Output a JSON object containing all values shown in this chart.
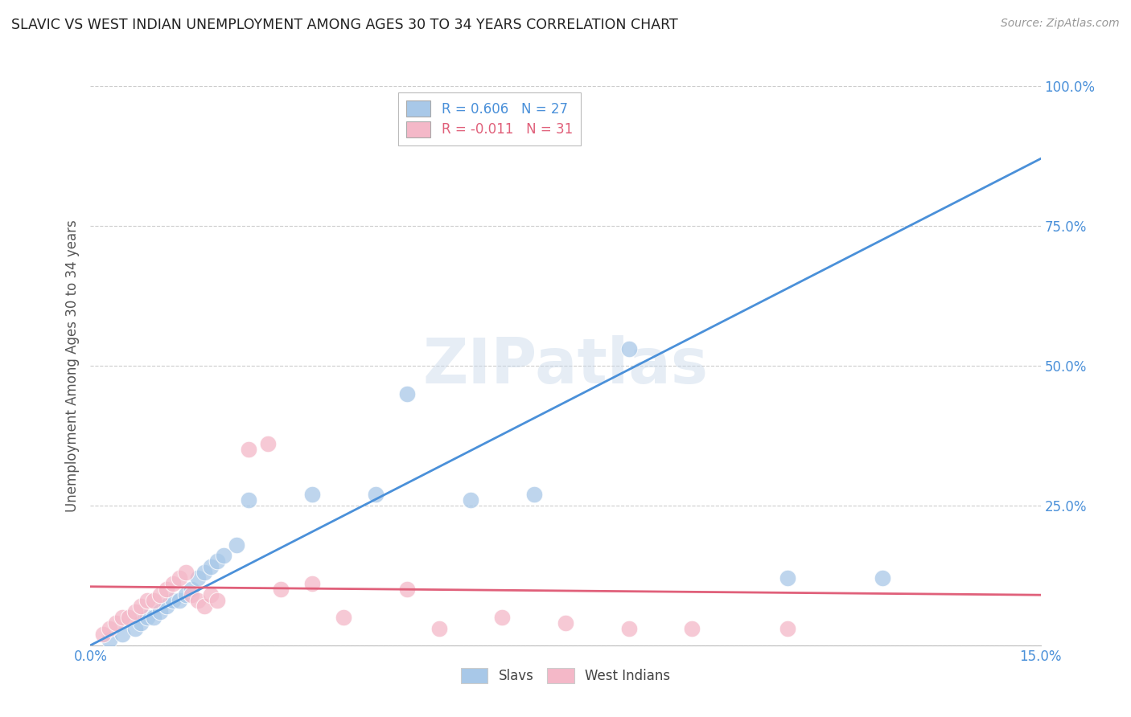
{
  "title": "SLAVIC VS WEST INDIAN UNEMPLOYMENT AMONG AGES 30 TO 34 YEARS CORRELATION CHART",
  "source": "Source: ZipAtlas.com",
  "ylabel_label": "Unemployment Among Ages 30 to 34 years",
  "xlim": [
    0.0,
    15.0
  ],
  "ylim": [
    0.0,
    100.0
  ],
  "slavs_R": 0.606,
  "slavs_N": 27,
  "west_indians_R": -0.011,
  "west_indians_N": 31,
  "slavs_color": "#a8c8e8",
  "slavs_line_color": "#4a90d9",
  "west_indians_color": "#f4b8c8",
  "west_indians_line_color": "#e0607a",
  "background_color": "#ffffff",
  "grid_color": "#cccccc",
  "slavs_x": [
    0.3,
    0.5,
    0.7,
    0.8,
    0.9,
    1.0,
    1.1,
    1.2,
    1.3,
    1.4,
    1.5,
    1.6,
    1.7,
    1.8,
    1.9,
    2.0,
    2.1,
    2.3,
    2.5,
    3.5,
    4.5,
    5.0,
    6.0,
    7.0,
    8.5,
    11.0,
    12.5
  ],
  "slavs_y": [
    1,
    2,
    3,
    4,
    5,
    5,
    6,
    7,
    8,
    8,
    9,
    10,
    12,
    13,
    14,
    15,
    16,
    18,
    26,
    27,
    27,
    45,
    26,
    27,
    53,
    12,
    12
  ],
  "west_indians_x": [
    0.2,
    0.3,
    0.4,
    0.5,
    0.6,
    0.7,
    0.8,
    0.9,
    1.0,
    1.1,
    1.2,
    1.3,
    1.4,
    1.5,
    1.6,
    1.7,
    1.8,
    1.9,
    2.0,
    2.5,
    2.8,
    3.0,
    3.5,
    4.0,
    5.0,
    5.5,
    6.5,
    7.5,
    8.5,
    9.5,
    11.0
  ],
  "west_indians_y": [
    2,
    3,
    4,
    5,
    5,
    6,
    7,
    8,
    8,
    9,
    10,
    11,
    12,
    13,
    9,
    8,
    7,
    9,
    8,
    35,
    36,
    10,
    11,
    5,
    10,
    3,
    5,
    4,
    3,
    3,
    3
  ],
  "slavs_line_x": [
    0.0,
    15.0
  ],
  "slavs_line_y": [
    0.0,
    87.0
  ],
  "west_indians_line_x": [
    0.0,
    15.0
  ],
  "west_indians_line_y": [
    10.5,
    9.0
  ]
}
